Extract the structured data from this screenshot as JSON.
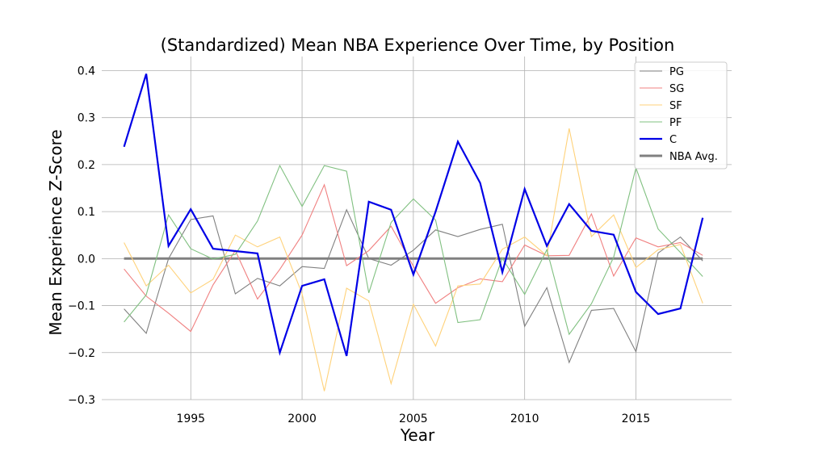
{
  "chart_data": {
    "type": "line",
    "title": "(Standardized) Mean NBA Experience Over Time, by Position",
    "xlabel": "Year",
    "ylabel": "Mean Experience Z-Score",
    "xlim": [
      1991.0,
      2019.3
    ],
    "ylim": [
      -0.3,
      0.43
    ],
    "xticks": [
      1995,
      2000,
      2005,
      2010,
      2015
    ],
    "xtick_labels": [
      "1995",
      "2000",
      "2005",
      "2010",
      "2015"
    ],
    "yticks": [
      -0.3,
      -0.2,
      -0.1,
      0.0,
      0.1,
      0.2,
      0.3,
      0.4
    ],
    "ytick_labels": [
      "−0.3",
      "−0.2",
      "−0.1",
      "0.0",
      "0.1",
      "0.2",
      "0.3",
      "0.4"
    ],
    "grid": true,
    "legend_position": "top-right",
    "x": [
      1992,
      1993,
      1994,
      1995,
      1996,
      1997,
      1998,
      1999,
      2000,
      2001,
      2002,
      2003,
      2004,
      2005,
      2006,
      2007,
      2008,
      2009,
      2010,
      2011,
      2012,
      2013,
      2014,
      2015,
      2016,
      2017,
      2018
    ],
    "series": [
      {
        "name": "PG",
        "color": "#808080",
        "values": [
          -0.107,
          -0.159,
          0.0,
          0.083,
          0.091,
          -0.075,
          -0.042,
          -0.058,
          -0.017,
          -0.021,
          0.104,
          0.0,
          -0.014,
          0.018,
          0.061,
          0.047,
          0.062,
          0.073,
          -0.144,
          -0.062,
          -0.221,
          -0.11,
          -0.106,
          -0.198,
          0.012,
          0.046,
          -0.005
        ]
      },
      {
        "name": "SG",
        "color": "#f08080",
        "values": [
          -0.022,
          -0.08,
          -0.116,
          -0.155,
          -0.056,
          0.017,
          -0.086,
          -0.023,
          0.05,
          0.157,
          -0.015,
          0.017,
          0.069,
          -0.016,
          -0.095,
          -0.062,
          -0.043,
          -0.049,
          0.029,
          0.006,
          0.007,
          0.095,
          -0.037,
          0.044,
          0.025,
          0.034,
          0.007
        ]
      },
      {
        "name": "SF",
        "color": "#ffd27a",
        "values": [
          0.034,
          -0.058,
          -0.014,
          -0.073,
          -0.044,
          0.05,
          0.025,
          0.046,
          -0.075,
          -0.282,
          -0.063,
          -0.09,
          -0.266,
          -0.097,
          -0.186,
          -0.058,
          -0.054,
          0.02,
          0.046,
          0.006,
          0.277,
          0.047,
          0.093,
          -0.019,
          0.019,
          0.03,
          -0.095
        ]
      },
      {
        "name": "PF",
        "color": "#80c080",
        "values": [
          -0.135,
          -0.077,
          0.093,
          0.021,
          -0.001,
          0.009,
          0.08,
          0.198,
          0.111,
          0.198,
          0.186,
          -0.073,
          0.077,
          0.127,
          0.082,
          -0.136,
          -0.13,
          0.001,
          -0.076,
          0.019,
          -0.161,
          -0.096,
          0.003,
          0.193,
          0.063,
          0.013,
          -0.038
        ]
      },
      {
        "name": "C",
        "color": "#0000e6",
        "values": [
          0.238,
          0.393,
          0.027,
          0.105,
          0.021,
          0.016,
          0.011,
          -0.2,
          -0.058,
          -0.044,
          -0.207,
          0.121,
          0.104,
          -0.034,
          0.1,
          0.249,
          0.161,
          -0.029,
          0.148,
          0.027,
          0.116,
          0.059,
          0.051,
          -0.071,
          -0.118,
          -0.106,
          0.087
        ]
      },
      {
        "name": "NBA Avg.",
        "color": "#808080",
        "values": [
          0,
          0,
          0,
          0,
          0,
          0,
          0,
          0,
          0,
          0,
          0,
          0,
          0,
          0,
          0,
          0,
          0,
          0,
          0,
          0,
          0,
          0,
          0,
          0,
          0,
          0,
          0
        ]
      }
    ]
  }
}
